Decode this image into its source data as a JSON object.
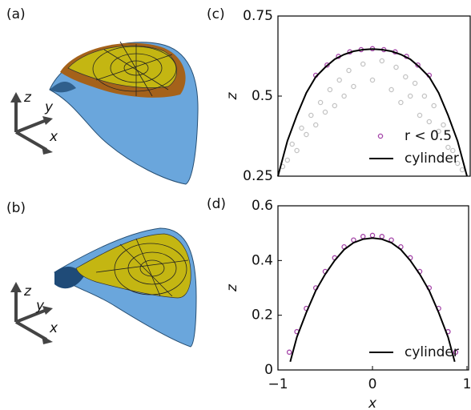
{
  "panels": [
    {
      "label": "(a)",
      "axes": [
        "z",
        "y",
        "x"
      ]
    },
    {
      "label": "(b)",
      "axes": [
        "z",
        "y",
        "x"
      ]
    }
  ],
  "chart_data": [
    {
      "type": "scatter",
      "panel_label": "(c)",
      "ylabel": "z",
      "xlim": [
        -1,
        1
      ],
      "ylim": [
        0.25,
        0.75
      ],
      "yticks": [
        0.25,
        0.5,
        0.75
      ],
      "legend": "lower right",
      "series": [
        {
          "type": "scatter",
          "color": "#c4c4c4",
          "x": [
            -0.95,
            -0.9,
            -0.85,
            -0.8,
            -0.75,
            -0.7,
            -0.65,
            -0.6,
            -0.55,
            -0.5,
            -0.45,
            -0.4,
            -0.35,
            -0.3,
            -0.25,
            -0.2,
            -0.1,
            0,
            0.1,
            0.2,
            0.25,
            0.3,
            0.35,
            0.4,
            0.45,
            0.5,
            0.55,
            0.6,
            0.65,
            0.7,
            0.75,
            0.8,
            0.85,
            0.9,
            0.95
          ],
          "values": [
            0.28,
            0.3,
            0.35,
            0.33,
            0.4,
            0.38,
            0.44,
            0.41,
            0.48,
            0.45,
            0.52,
            0.47,
            0.55,
            0.5,
            0.58,
            0.53,
            0.6,
            0.55,
            0.61,
            0.52,
            0.59,
            0.48,
            0.56,
            0.5,
            0.54,
            0.44,
            0.5,
            0.42,
            0.47,
            0.39,
            0.41,
            0.34,
            0.33,
            0.29,
            0.27
          ]
        },
        {
          "type": "scatter",
          "name": "r < 0.5",
          "color": "#a444a8",
          "x": [
            -0.6,
            -0.48,
            -0.36,
            -0.24,
            -0.12,
            0,
            0.12,
            0.24,
            0.36,
            0.48,
            0.6
          ],
          "values": [
            0.565,
            0.597,
            0.624,
            0.638,
            0.645,
            0.648,
            0.645,
            0.638,
            0.624,
            0.597,
            0.565
          ]
        },
        {
          "type": "line",
          "name": "cylinder",
          "color": "#000000",
          "x": [
            -1,
            -0.9,
            -0.8,
            -0.7,
            -0.6,
            -0.5,
            -0.4,
            -0.3,
            -0.2,
            -0.1,
            0,
            0.1,
            0.2,
            0.3,
            0.4,
            0.5,
            0.6,
            0.7,
            0.8,
            0.9,
            1
          ],
          "values": [
            0.25,
            0.36,
            0.44,
            0.51,
            0.56,
            0.59,
            0.615,
            0.63,
            0.64,
            0.645,
            0.647,
            0.645,
            0.64,
            0.63,
            0.615,
            0.59,
            0.56,
            0.51,
            0.44,
            0.36,
            0.25
          ]
        }
      ]
    },
    {
      "type": "scatter",
      "panel_label": "(d)",
      "ylabel": "z",
      "xlabel": "x",
      "xlim": [
        -1,
        1
      ],
      "ylim": [
        0,
        0.6
      ],
      "yticks": [
        0,
        0.2,
        0.4,
        0.6
      ],
      "xticks": [
        {
          "value": -1,
          "label": "−1"
        },
        0,
        1
      ],
      "legend": "lower right",
      "series": [
        {
          "type": "scatter",
          "color": "#a444a8",
          "x": [
            -0.88,
            -0.8,
            -0.7,
            -0.6,
            -0.5,
            -0.4,
            -0.3,
            -0.2,
            -0.1,
            0,
            0.1,
            0.2,
            0.3,
            0.4,
            0.5,
            0.6,
            0.7,
            0.8,
            0.88
          ],
          "values": [
            0.065,
            0.14,
            0.225,
            0.3,
            0.36,
            0.41,
            0.45,
            0.475,
            0.488,
            0.492,
            0.488,
            0.475,
            0.45,
            0.41,
            0.36,
            0.3,
            0.225,
            0.14,
            0.065
          ]
        },
        {
          "type": "line",
          "name": "cylinder",
          "color": "#000000",
          "x": [
            -0.87,
            -0.8,
            -0.7,
            -0.6,
            -0.5,
            -0.4,
            -0.3,
            -0.2,
            -0.1,
            0,
            0.1,
            0.2,
            0.3,
            0.4,
            0.5,
            0.6,
            0.7,
            0.8,
            0.87
          ],
          "values": [
            0.03,
            0.12,
            0.21,
            0.29,
            0.35,
            0.4,
            0.44,
            0.465,
            0.478,
            0.482,
            0.478,
            0.465,
            0.44,
            0.4,
            0.35,
            0.29,
            0.21,
            0.12,
            0.03
          ]
        }
      ]
    }
  ]
}
